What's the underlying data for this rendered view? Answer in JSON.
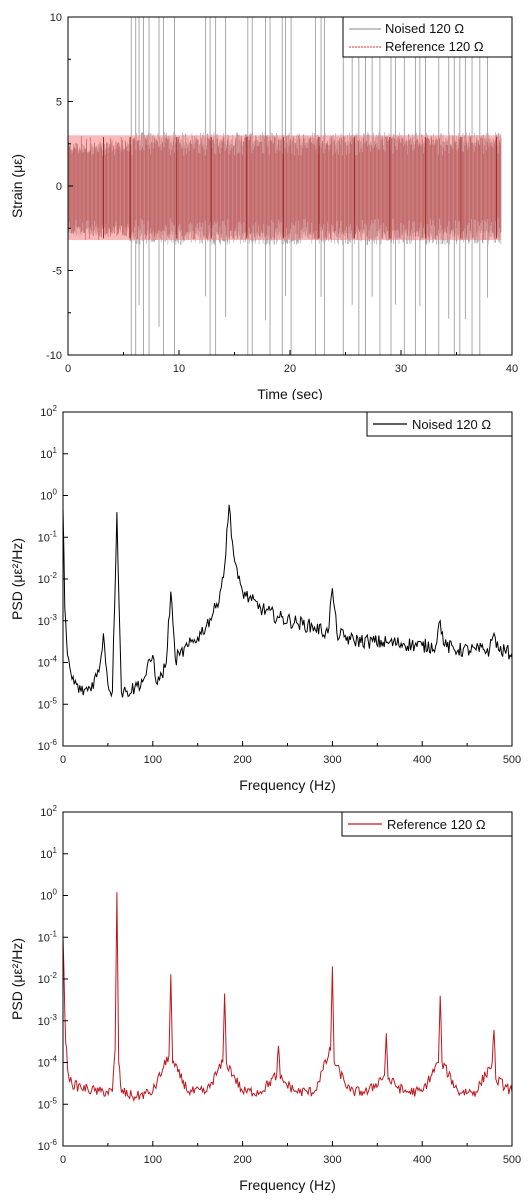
{
  "chart_data": [
    {
      "type": "line",
      "xlabel": "Time (sec)",
      "ylabel": "Strain (με)",
      "xlim": [
        0,
        40
      ],
      "ylim": [
        -10,
        10
      ],
      "xticks": [
        0,
        10,
        20,
        30,
        40
      ],
      "yticks": [
        -10,
        -5,
        0,
        5,
        10
      ],
      "ytick_labels": [
        "-10",
        "-5",
        "0",
        "5",
        "10"
      ],
      "legend_position": "top-right",
      "grid": false,
      "series": [
        {
          "name": "Noised 120 Ω",
          "color": "#a0a0a0",
          "band": {
            "x_range": [
              0,
              39
            ],
            "before_5_5": [
              -3.0,
              2.6
            ],
            "after_5_5": [
              -3.5,
              3.2
            ]
          },
          "spike_times": [
            5.7,
            6.1,
            6.4,
            6.8,
            7.3,
            8.2,
            8.6,
            9.6,
            12.4,
            12.8,
            13.3,
            14.2,
            16.2,
            16.6,
            17.8,
            18.2,
            19.3,
            19.6,
            20.1,
            22.3,
            22.8,
            23.1,
            24.8,
            25.6,
            26.2,
            26.8,
            27.4,
            28.1,
            29.1,
            29.5,
            30.3,
            31.3,
            31.7,
            32.2,
            33.4,
            34.3,
            34.8,
            35.3,
            35.8,
            36.4,
            37.1,
            37.8
          ],
          "spike_peaks": [
            10,
            -10
          ]
        },
        {
          "name": "Reference 120 Ω",
          "color": "#e05a5a",
          "band": {
            "x_range": [
              0,
              39
            ],
            "min": -3.2,
            "max": 3.0
          }
        }
      ]
    },
    {
      "type": "line",
      "xlabel": "Frequency (Hz)",
      "ylabel": "PSD (με²/Hz)",
      "xlim": [
        0,
        500
      ],
      "ylim": [
        1e-06,
        100
      ],
      "yscale": "log",
      "xticks": [
        0,
        100,
        200,
        300,
        400,
        500
      ],
      "ytick_exponents": [
        -6,
        -5,
        -4,
        -3,
        -2,
        -1,
        0,
        1,
        2
      ],
      "legend_position": "top-right",
      "grid": false,
      "series": [
        {
          "name": "Noised 120 Ω",
          "color": "#000000",
          "x": [
            0,
            2,
            5,
            10,
            20,
            30,
            40,
            45,
            50,
            55,
            60,
            65,
            70,
            80,
            90,
            100,
            105,
            110,
            115,
            120,
            125,
            130,
            140,
            150,
            160,
            170,
            175,
            180,
            185,
            190,
            195,
            200,
            210,
            220,
            240,
            260,
            280,
            295,
            300,
            305,
            320,
            340,
            360,
            380,
            400,
            415,
            420,
            425,
            440,
            460,
            475,
            480,
            485,
            500
          ],
          "y": [
            0.5,
            0.002,
            0.00015,
            4e-05,
            2e-05,
            2.5e-05,
            6e-05,
            0.0005,
            3e-05,
            2e-05,
            0.4,
            2e-05,
            2e-05,
            2.5e-05,
            4e-05,
            0.00015,
            3e-05,
            5e-05,
            0.0001,
            0.005,
            0.00012,
            0.00015,
            0.00025,
            0.0004,
            0.0008,
            0.002,
            0.005,
            0.02,
            0.6,
            0.04,
            0.01,
            0.005,
            0.003,
            0.002,
            0.0012,
            0.0009,
            0.0007,
            0.0005,
            0.006,
            0.0005,
            0.00035,
            0.00032,
            0.0003,
            0.00028,
            0.00025,
            0.00025,
            0.001,
            0.00025,
            0.0002,
            0.0002,
            0.0002,
            0.0005,
            0.0002,
            0.00017
          ]
        }
      ]
    },
    {
      "type": "line",
      "xlabel": "Frequency (Hz)",
      "ylabel": "PSD (με²/Hz)",
      "xlim": [
        0,
        500
      ],
      "ylim": [
        1e-06,
        100
      ],
      "yscale": "log",
      "xticks": [
        0,
        100,
        200,
        300,
        400,
        500
      ],
      "ytick_exponents": [
        -6,
        -5,
        -4,
        -3,
        -2,
        -1,
        0,
        1,
        2
      ],
      "legend_position": "top-right",
      "grid": false,
      "series": [
        {
          "name": "Reference 120 Ω",
          "color": "#c0181e",
          "x": [
            0,
            3,
            6,
            10,
            20,
            40,
            55,
            58,
            60,
            62,
            65,
            80,
            100,
            118,
            120,
            122,
            140,
            160,
            178,
            180,
            182,
            200,
            220,
            238,
            240,
            242,
            260,
            280,
            298,
            300,
            302,
            320,
            340,
            358,
            360,
            362,
            380,
            400,
            418,
            420,
            422,
            440,
            460,
            478,
            480,
            482,
            500
          ],
          "y": [
            0.1,
            0.0003,
            5e-05,
            3e-05,
            2.5e-05,
            2e-05,
            2e-05,
            0.0002,
            1.2,
            0.0001,
            2e-05,
            1.5e-05,
            2e-05,
            0.00015,
            0.013,
            0.0001,
            2e-05,
            2e-05,
            0.0001,
            0.0045,
            0.0001,
            2e-05,
            2e-05,
            5e-05,
            0.00025,
            4e-05,
            2e-05,
            2e-05,
            0.0002,
            0.02,
            0.0001,
            2e-05,
            2e-05,
            5e-05,
            0.0005,
            4e-05,
            2e-05,
            2e-05,
            0.0001,
            0.004,
            0.0001,
            2e-05,
            2e-05,
            0.0001,
            0.0006,
            4e-05,
            2e-05
          ]
        }
      ]
    }
  ]
}
